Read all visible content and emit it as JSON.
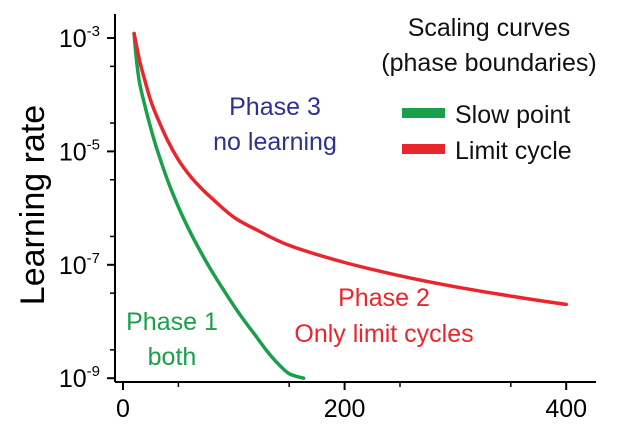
{
  "chart_data": {
    "type": "line",
    "title": "",
    "xlabel": "",
    "ylabel": "Learning rate",
    "x_scale": "linear",
    "y_scale": "log",
    "xlim": [
      -5,
      420
    ],
    "ylim_exponent": [
      -9,
      -2.6
    ],
    "x_ticks": [
      {
        "value": 0,
        "label": "0"
      },
      {
        "value": 200,
        "label": "200"
      },
      {
        "value": 400,
        "label": "400"
      }
    ],
    "y_ticks": [
      {
        "exp": -3,
        "base": "10",
        "sup": "-3"
      },
      {
        "exp": -5,
        "base": "10",
        "sup": "-5"
      },
      {
        "exp": -7,
        "base": "10",
        "sup": "-7"
      },
      {
        "exp": -9,
        "base": "10",
        "sup": "-9"
      }
    ],
    "legend": {
      "title_lines": [
        "Scaling curves",
        "(phase boundaries)"
      ],
      "placement": "top-right"
    },
    "series": [
      {
        "name": "Slow point",
        "color": "#1aa04a",
        "points": [
          [
            10,
            0.0012
          ],
          [
            12,
            0.00044
          ],
          [
            15,
            0.00016
          ],
          [
            20,
            6.1e-05
          ],
          [
            25,
            2.6e-05
          ],
          [
            30,
            1.2e-05
          ],
          [
            40,
            3.2e-06
          ],
          [
            50,
            1.05e-06
          ],
          [
            60,
            4e-07
          ],
          [
            70,
            1.7e-07
          ],
          [
            80,
            7.8e-08
          ],
          [
            90,
            3.8e-08
          ],
          [
            100,
            1.9e-08
          ],
          [
            110,
            1e-08
          ],
          [
            120,
            5.5e-09
          ],
          [
            130,
            3e-09
          ],
          [
            140,
            1.8e-09
          ],
          [
            150,
            1.2e-09
          ],
          [
            163,
            1e-09
          ]
        ]
      },
      {
        "name": "Limit cycle",
        "color": "#e8262b",
        "points": [
          [
            10,
            0.0012
          ],
          [
            15,
            0.0004
          ],
          [
            20,
            0.00017
          ],
          [
            25,
            7.9e-05
          ],
          [
            30,
            4.4e-05
          ],
          [
            40,
            1.6e-05
          ],
          [
            50,
            7.1e-06
          ],
          [
            60,
            3.8e-06
          ],
          [
            70,
            2.3e-06
          ],
          [
            80,
            1.5e-06
          ],
          [
            100,
            6.9e-07
          ],
          [
            120,
            4.2e-07
          ],
          [
            150,
            2.2e-07
          ],
          [
            200,
            1.1e-07
          ],
          [
            250,
            6.4e-08
          ],
          [
            300,
            4.1e-08
          ],
          [
            350,
            2.8e-08
          ],
          [
            400,
            2e-08
          ]
        ]
      }
    ],
    "annotations": [
      {
        "lines": [
          "Phase 3",
          "no learning"
        ],
        "color": "#2e3192"
      },
      {
        "lines": [
          "Phase 2",
          "Only limit cycles"
        ],
        "color": "#e8262b"
      },
      {
        "lines": [
          "Phase 1",
          "both"
        ],
        "color": "#1aa04a"
      }
    ]
  }
}
